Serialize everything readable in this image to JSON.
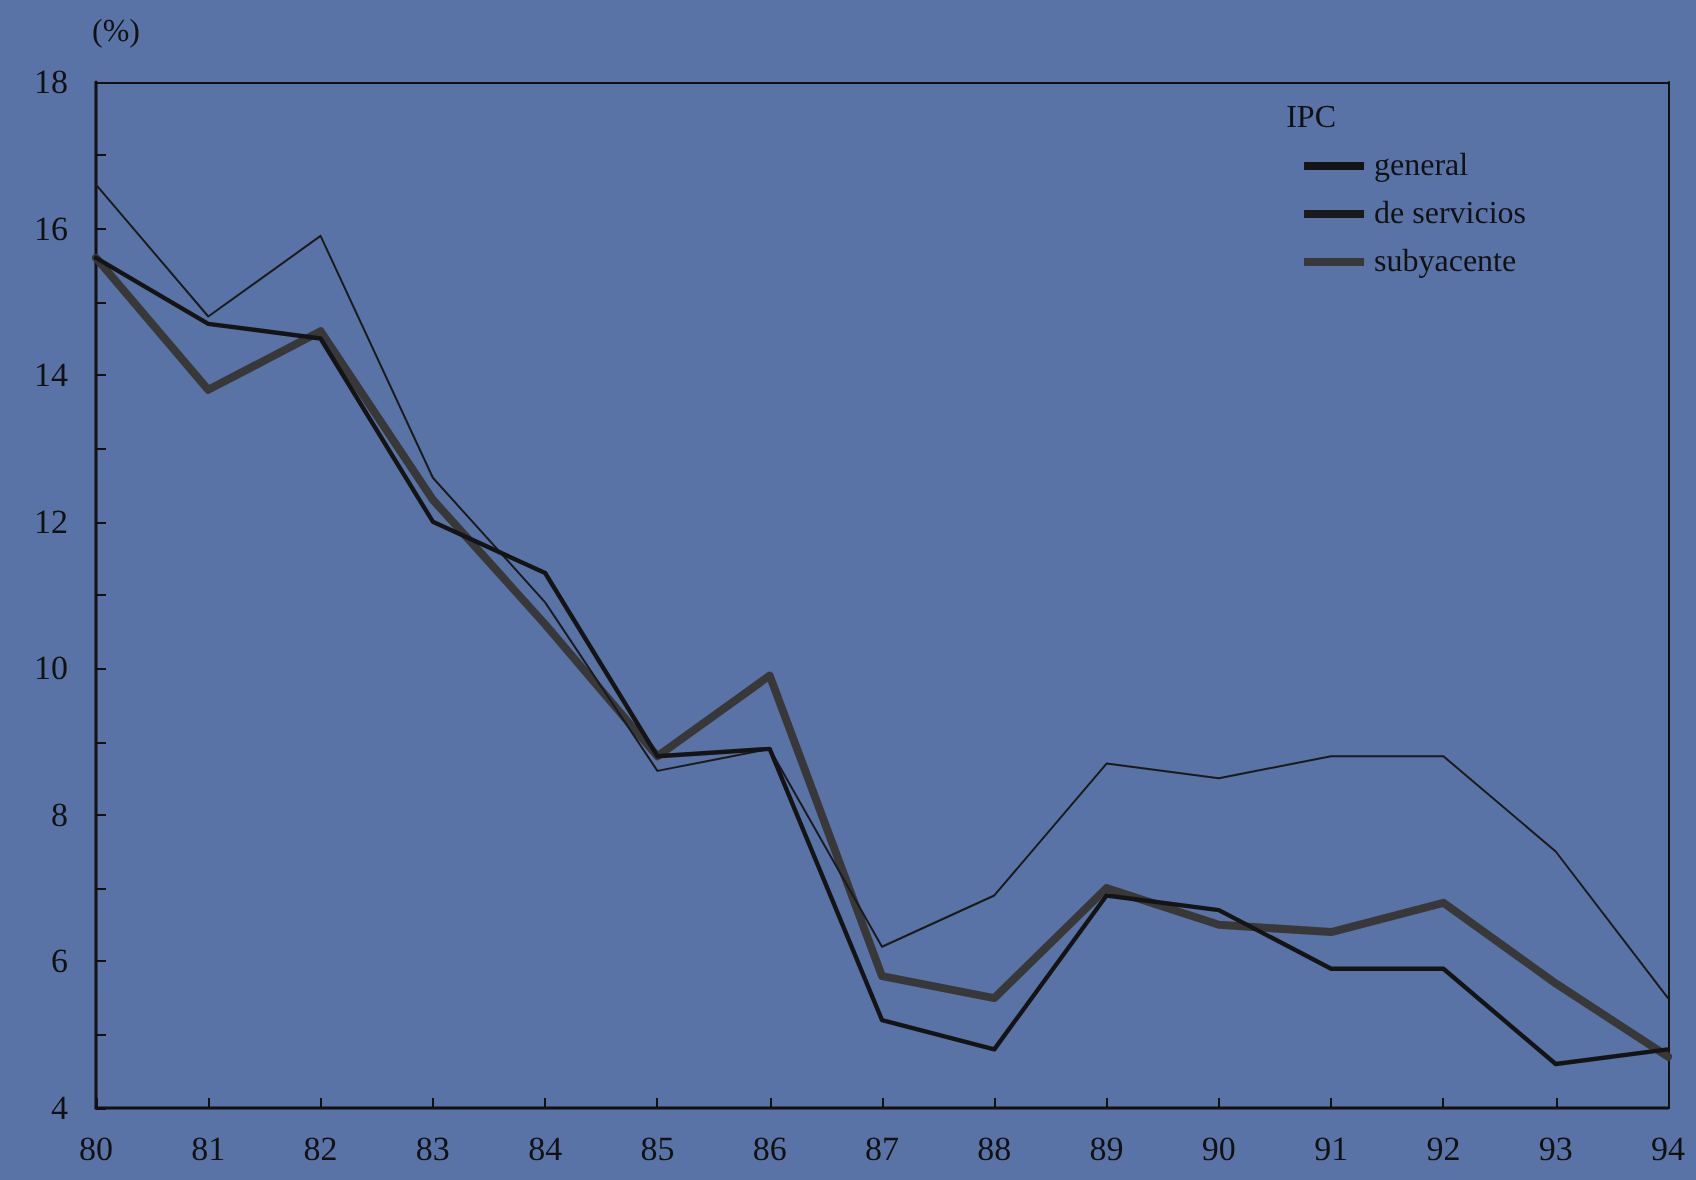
{
  "chart_data": {
    "type": "line",
    "ylabel": "(%)",
    "legend_title": "IPC",
    "legend": "top right",
    "grid": false,
    "marker": "none",
    "line_style": "solid",
    "x": [
      80,
      81,
      82,
      83,
      84,
      85,
      86,
      87,
      88,
      89,
      90,
      91,
      92,
      93,
      94
    ],
    "xlim": [
      80,
      94
    ],
    "xticks": [
      80,
      81,
      82,
      83,
      84,
      85,
      86,
      87,
      88,
      89,
      90,
      91,
      92,
      93,
      94
    ],
    "ylim": [
      4,
      18
    ],
    "yticks": [
      4,
      {
        "value": 5,
        "label": null
      },
      6,
      {
        "value": 7,
        "label": null
      },
      8,
      {
        "value": 9,
        "label": null
      },
      10,
      {
        "value": 11,
        "label": null
      },
      12,
      {
        "value": 13,
        "label": null
      },
      14,
      {
        "value": 15,
        "label": null
      },
      16,
      {
        "value": 17,
        "label": null
      },
      18
    ],
    "series": [
      {
        "name": "general",
        "color": "#141414",
        "values": [
          15.6,
          14.7,
          14.5,
          12.0,
          11.3,
          8.8,
          8.9,
          5.2,
          4.8,
          6.9,
          6.7,
          5.9,
          5.9,
          4.6,
          4.8
        ]
      },
      {
        "name": "de servicios",
        "color": "#1a1a1a",
        "values": [
          16.6,
          14.8,
          15.9,
          12.6,
          10.9,
          8.6,
          8.9,
          6.2,
          6.9,
          8.7,
          8.5,
          8.8,
          8.8,
          7.5,
          5.5
        ]
      },
      {
        "name": "subyacente",
        "color": "#383838",
        "values": [
          15.6,
          13.8,
          14.6,
          12.3,
          10.6,
          8.8,
          9.9,
          5.8,
          5.5,
          7.0,
          6.5,
          6.4,
          6.8,
          5.7,
          4.7
        ]
      }
    ]
  }
}
